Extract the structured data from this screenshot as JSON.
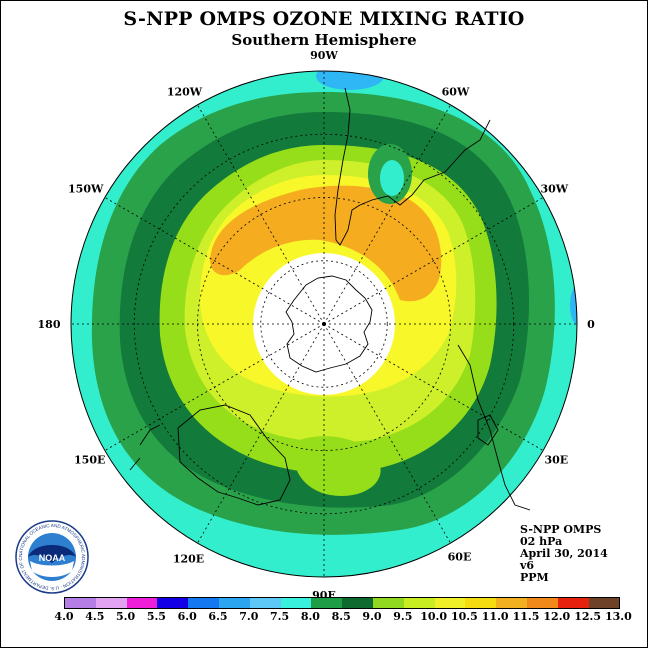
{
  "header": {
    "title": "S-NPP OMPS OZONE MIXING RATIO",
    "subtitle": "Southern Hemisphere"
  },
  "map": {
    "projection": "south-polar-stereographic",
    "longitude_labels": [
      "90W",
      "60W",
      "30W",
      "0",
      "30E",
      "60E",
      "90E",
      "120E",
      "150E",
      "180",
      "150W",
      "120W"
    ],
    "colors": {
      "ocean_outer": "#33eecc",
      "dark_green": "#127a3a",
      "green": "#2aa24a",
      "light_green": "#96dd1a",
      "yellow_green": "#cdf02a",
      "yellow": "#f7f72a",
      "orange": "#f5ad1f",
      "pole_hole": "#ffffff",
      "blue_patch": "#2fb6f5"
    }
  },
  "info": {
    "instrument": "S-NPP OMPS",
    "level": "02 hPa",
    "date": "April 30, 2014",
    "version": "v6",
    "units": "PPM"
  },
  "colorbar": {
    "ticks": [
      "4.0",
      "4.5",
      "5.0",
      "5.5",
      "6.0",
      "6.5",
      "7.0",
      "7.5",
      "8.0",
      "8.5",
      "9.0",
      "9.5",
      "10.0",
      "10.5",
      "11.0",
      "11.5",
      "12.0",
      "12.5",
      "13.0"
    ],
    "colors": [
      "#b57de6",
      "#e2a4f2",
      "#ef1fd9",
      "#1400e6",
      "#1478f0",
      "#2ca5f0",
      "#5dc7f5",
      "#38f0dc",
      "#1e9d46",
      "#0e6a2e",
      "#91d820",
      "#c8ee22",
      "#f0f028",
      "#f4dc10",
      "#f0b020",
      "#f0881a",
      "#e6220e",
      "#6e4228"
    ]
  },
  "logo": {
    "text": "NOAA",
    "ring_text": "NATIONAL OCEANIC AND ATMOSPHERIC ADMINISTRATION · U.S. DEPARTMENT OF COMMERCE"
  }
}
